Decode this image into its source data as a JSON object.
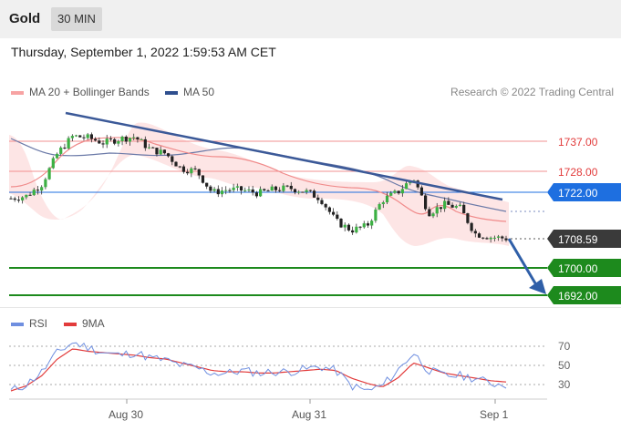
{
  "header": {
    "symbol": "Gold",
    "timeframe": "30 MIN",
    "datetime": "Thursday, September 1, 2022 1:59:53 AM CET"
  },
  "legend": {
    "ma20": "MA 20 + Bollinger Bands",
    "ma50": "MA 50",
    "ma20_color": "#f08a8a",
    "ma50_color": "#2f4f8f"
  },
  "credit": "Research © 2022 Trading Central",
  "levels": [
    {
      "label": "1737.00",
      "kind": "resistance",
      "color": "#e23b3b"
    },
    {
      "label": "1728.00",
      "kind": "resistance",
      "color": "#e23b3b"
    },
    {
      "label": "1722.00",
      "kind": "pivot",
      "color": "#1e6fe0"
    },
    {
      "label": "1708.59",
      "kind": "last",
      "color": "#333333"
    },
    {
      "label": "1700.00",
      "kind": "support",
      "color": "#1d8a1d"
    },
    {
      "label": "1692.00",
      "kind": "support",
      "color": "#1d8a1d"
    }
  ],
  "rsi_legend": {
    "rsi": "RSI",
    "ma9": "9MA",
    "rsi_color": "#6f8fe0",
    "ma9_color": "#e23b3b"
  },
  "rsi_ticks": [
    "70",
    "50",
    "30"
  ],
  "x_labels": [
    "Aug 30",
    "Aug 31",
    "Sep 1"
  ],
  "chart_data": {
    "type": "line",
    "title": "Gold 30 MIN",
    "price_axis_labels": [
      1737.0,
      1728.0,
      1722.0,
      1708.59,
      1700.0,
      1692.0
    ],
    "close_series": [
      1720.3,
      1721.0,
      1724.5,
      1733.4,
      1738.5,
      1738.0,
      1736.5,
      1737.7,
      1738.3,
      1734.6,
      1733.4,
      1729.0,
      1728.3,
      1722.0,
      1722.9,
      1722.7,
      1721.8,
      1722.9,
      1723.3,
      1722.4,
      1720.3,
      1713.6,
      1711.0,
      1712.2,
      1719.8,
      1722.1,
      1726.4,
      1716.1,
      1718.5,
      1717.6,
      1710.0,
      1709.0,
      1708.6
    ],
    "rsi_values": [
      30,
      35,
      45,
      60,
      68,
      64,
      60,
      58,
      60,
      56,
      54,
      50,
      48,
      44,
      44,
      46,
      44,
      45,
      45,
      47,
      49,
      46,
      34,
      30,
      34,
      46,
      60,
      46,
      42,
      42,
      40,
      36,
      35
    ],
    "rsi_ma9_values": [
      30,
      34,
      42,
      55,
      63,
      61,
      60,
      59,
      58,
      56,
      55,
      52,
      49,
      46,
      45,
      45,
      44,
      44,
      45,
      46,
      47,
      46,
      40,
      36,
      33,
      40,
      52,
      48,
      44,
      42,
      40,
      38,
      37
    ],
    "rsi_ylim": [
      20,
      80
    ],
    "x_categories": [
      "Aug 30",
      "Aug 31",
      "Sep 1"
    ]
  }
}
